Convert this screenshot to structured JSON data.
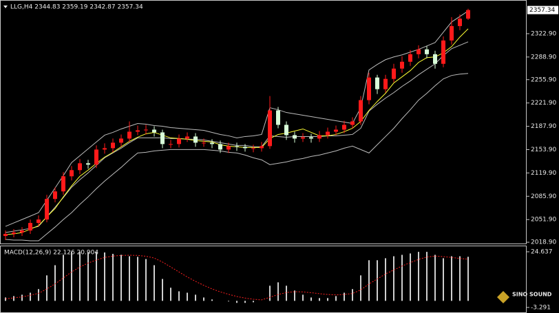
{
  "chart_data": [
    {
      "type": "candlestick",
      "title": "LLG,H4  2344.83 2359.19 2342.87 2357.34",
      "open": [
        2028,
        2031,
        2033,
        2036,
        2047,
        2052,
        2082,
        2093,
        2115,
        2124,
        2134,
        2132,
        2154,
        2156,
        2164,
        2170,
        2180,
        2182,
        2183,
        2179,
        2162,
        2162,
        2170,
        2173,
        2164,
        2164,
        2162,
        2154,
        2159,
        2158,
        2156,
        2156,
        2159,
        2211,
        2190,
        2175,
        2170,
        2172,
        2170,
        2175,
        2180,
        2183,
        2190,
        2195,
        2226,
        2259,
        2242,
        2257,
        2272,
        2282,
        2293,
        2300,
        2293,
        2279,
        2313,
        2334,
        2344.83
      ],
      "high": [
        2036,
        2038,
        2041,
        2052,
        2058,
        2088,
        2099,
        2121,
        2130,
        2140,
        2139,
        2160,
        2163,
        2170,
        2176,
        2195,
        2189,
        2190,
        2188,
        2183,
        2168,
        2176,
        2179,
        2178,
        2170,
        2169,
        2167,
        2164,
        2164,
        2162,
        2161,
        2165,
        2232,
        2216,
        2195,
        2180,
        2178,
        2177,
        2181,
        2186,
        2189,
        2196,
        2201,
        2232,
        2266,
        2263,
        2263,
        2279,
        2290,
        2299,
        2306,
        2305,
        2298,
        2319,
        2347,
        2351,
        2359.19
      ],
      "low": [
        2022,
        2026,
        2028,
        2031,
        2042,
        2048,
        2077,
        2088,
        2109,
        2118,
        2126,
        2127,
        2148,
        2150,
        2158,
        2165,
        2175,
        2176,
        2173,
        2156,
        2156,
        2157,
        2165,
        2158,
        2158,
        2156,
        2149,
        2149,
        2152,
        2151,
        2150,
        2151,
        2155,
        2185,
        2168,
        2164,
        2165,
        2164,
        2165,
        2170,
        2175,
        2178,
        2185,
        2190,
        2220,
        2235,
        2237,
        2252,
        2266,
        2276,
        2287,
        2287,
        2272,
        2274,
        2307,
        2328,
        2342.87
      ],
      "close": [
        2031,
        2033,
        2036,
        2047,
        2052,
        2082,
        2093,
        2115,
        2124,
        2134,
        2132,
        2154,
        2156,
        2164,
        2170,
        2180,
        2182,
        2183,
        2179,
        2162,
        2162,
        2170,
        2173,
        2164,
        2164,
        2162,
        2154,
        2159,
        2158,
        2156,
        2156,
        2159,
        2211,
        2190,
        2175,
        2170,
        2172,
        2170,
        2175,
        2180,
        2183,
        2190,
        2195,
        2226,
        2259,
        2242,
        2257,
        2272,
        2282,
        2293,
        2300,
        2293,
        2279,
        2313,
        2334,
        2344.83,
        2357.34
      ],
      "up_color": "#ff1a1a",
      "down_color": "#d8ffd8",
      "series": [
        {
          "color": "#bdbdbd",
          "values": [
            2042,
            2047,
            2052,
            2057,
            2062,
            2080,
            2098,
            2116,
            2135,
            2145,
            2155,
            2165,
            2175,
            2179,
            2184,
            2188,
            2192,
            2191,
            2189,
            2188,
            2186,
            2185,
            2184,
            2183,
            2182,
            2179,
            2176,
            2174,
            2171,
            2173,
            2174,
            2176,
            2215,
            2212,
            2208,
            2206,
            2204,
            2202,
            2200,
            2198,
            2196,
            2194,
            2192,
            2215,
            2270,
            2278,
            2285,
            2289,
            2292,
            2296,
            2300,
            2305,
            2310,
            2325,
            2340,
            2348,
            2356
          ]
        },
        {
          "color": "#bdbdbd",
          "values": [
            2033,
            2035,
            2037,
            2039,
            2042,
            2056,
            2070,
            2084,
            2099,
            2110,
            2120,
            2131,
            2142,
            2149,
            2156,
            2164,
            2171,
            2171,
            2171,
            2171,
            2170,
            2170,
            2169,
            2169,
            2168,
            2166,
            2164,
            2162,
            2160,
            2160,
            2158,
            2158,
            2174,
            2173,
            2172,
            2173,
            2173,
            2173,
            2173,
            2174,
            2174,
            2175,
            2176,
            2185,
            2210,
            2220,
            2229,
            2237,
            2246,
            2254,
            2263,
            2271,
            2279,
            2291,
            2301,
            2306,
            2311
          ]
        },
        {
          "color": "#bdbdbd",
          "values": [
            2023,
            2022,
            2022,
            2021,
            2021,
            2031,
            2041,
            2052,
            2062,
            2074,
            2085,
            2097,
            2108,
            2118,
            2128,
            2139,
            2149,
            2150,
            2152,
            2153,
            2154,
            2154,
            2154,
            2154,
            2154,
            2153,
            2152,
            2150,
            2149,
            2146,
            2142,
            2139,
            2132,
            2134,
            2136,
            2139,
            2141,
            2144,
            2146,
            2149,
            2152,
            2156,
            2159,
            2154,
            2149,
            2161,
            2173,
            2185,
            2199,
            2212,
            2226,
            2236,
            2247,
            2257,
            2262,
            2264,
            2265
          ]
        },
        {
          "color": "#ffff33",
          "values": [
            2030,
            2031,
            2033,
            2038,
            2043,
            2056,
            2068,
            2085,
            2101,
            2115,
            2124,
            2134,
            2143,
            2150,
            2158,
            2166,
            2172,
            2177,
            2179,
            2175,
            2171,
            2170,
            2169,
            2167,
            2166,
            2165,
            2161,
            2159,
            2158,
            2157,
            2157,
            2157,
            2170,
            2176,
            2178,
            2181,
            2184,
            2179,
            2174,
            2174,
            2176,
            2180,
            2185,
            2195,
            2211,
            2224,
            2236,
            2251,
            2260,
            2269,
            2281,
            2288,
            2289,
            2295,
            2304,
            2318,
            2330
          ]
        }
      ],
      "ylim": [
        2016,
        2372
      ],
      "yticks": [
        {
          "value": 2018.9,
          "label": "2018.90"
        },
        {
          "value": 2051.9,
          "label": "2051.90"
        },
        {
          "value": 2085.9,
          "label": "2085.90"
        },
        {
          "value": 2119.9,
          "label": "2119.90"
        },
        {
          "value": 2153.9,
          "label": "2153.90"
        },
        {
          "value": 2187.9,
          "label": "2187.90"
        },
        {
          "value": 2221.9,
          "label": "2221.90"
        },
        {
          "value": 2255.9,
          "label": "2255.90"
        },
        {
          "value": 2288.9,
          "label": "2288.90"
        },
        {
          "value": 2322.9,
          "label": "2322.90"
        }
      ],
      "current_price": 2357.34
    },
    {
      "type": "macd",
      "title": "MACD(12,26,9) 22.126 20.904",
      "histogram": {
        "color": "#d0d0d0",
        "values": [
          1.7,
          2.4,
          3.1,
          4.1,
          5.9,
          12.8,
          17.9,
          23.1,
          24.6,
          24.6,
          24.5,
          24.6,
          24.3,
          23.6,
          23.1,
          22.4,
          22.1,
          21.0,
          17.9,
          11.0,
          6.6,
          4.8,
          4.1,
          3.1,
          1.7,
          0.7,
          0,
          -0.3,
          -1.0,
          -1.0,
          -0.7,
          0,
          7.6,
          9.3,
          7.6,
          5.2,
          3.1,
          1.7,
          1.4,
          1.4,
          2.4,
          4.1,
          5.9,
          12.8,
          20.4,
          20.4,
          21.4,
          22.4,
          23.1,
          23.8,
          24.6,
          24.6,
          23.1,
          21.4,
          22.4,
          22.4,
          22.126
        ]
      },
      "signal": {
        "color": "#ff2020",
        "values": [
          1.0,
          1.5,
          2.0,
          2.8,
          3.8,
          6.0,
          8.5,
          11.5,
          14.5,
          17,
          19,
          20.5,
          21.8,
          22.5,
          22.8,
          22.9,
          22.8,
          22.4,
          21.5,
          19.5,
          17,
          14.5,
          12,
          9.8,
          7.8,
          6,
          4.5,
          3.3,
          2.2,
          1.4,
          0.8,
          0.5,
          1.8,
          3.2,
          4.2,
          4.6,
          4.5,
          4.1,
          3.6,
          3.2,
          3.0,
          3.2,
          3.7,
          5.5,
          8.5,
          11.0,
          13.5,
          15.5,
          17.5,
          19.2,
          20.8,
          22.0,
          22.5,
          22.2,
          21.8,
          21.3,
          20.904
        ]
      },
      "ylim": [
        -5.4,
        27.4
      ],
      "yticks": [
        24.637,
        -3.291
      ]
    }
  ],
  "watermark": "SINO SOUND"
}
